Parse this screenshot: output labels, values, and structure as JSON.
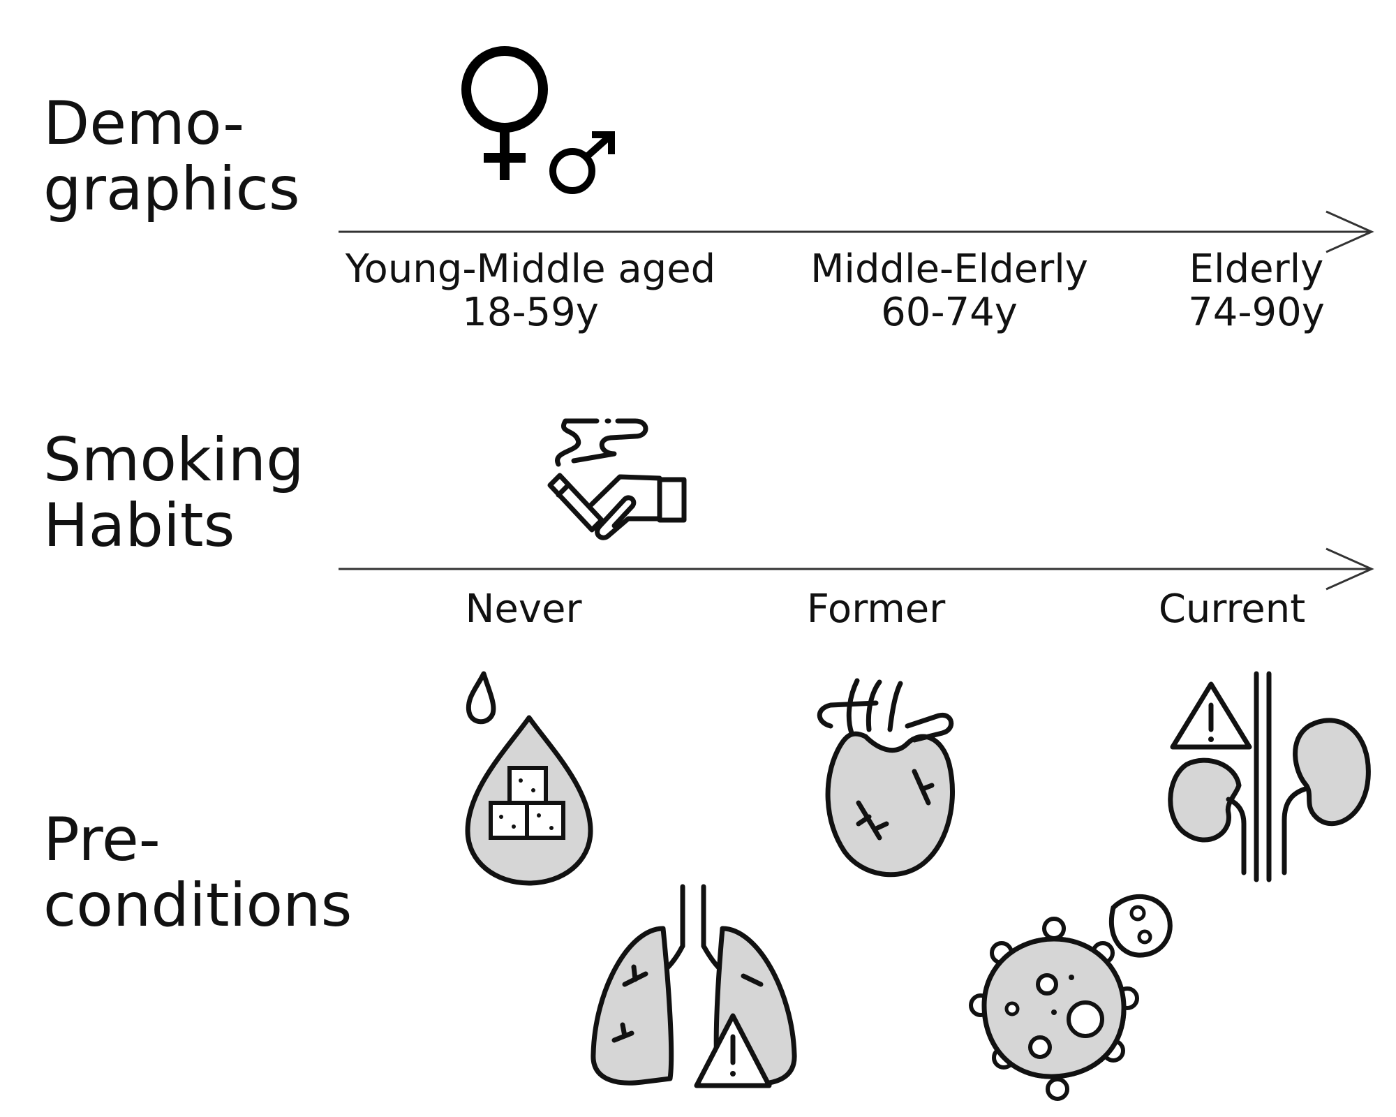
{
  "rows": {
    "demographics": {
      "title": "Demo-\ngraphics",
      "ticks": [
        "Young-Middle aged\n18-59y",
        "Middle-Elderly\n60-74y",
        "Elderly\n74-90y"
      ]
    },
    "smoking": {
      "title": "Smoking\nHabits",
      "ticks": [
        "Never",
        "Former",
        "Current"
      ]
    },
    "preconditions": {
      "title": "Pre-\nconditions"
    }
  },
  "icons": {
    "sex": [
      "female-symbol-icon",
      "male-symbol-icon"
    ],
    "smoking": "hand-cigarette-icon",
    "conditions": [
      "diabetes-blood-sugar-icon",
      "heart-icon",
      "kidney-warning-icon",
      "lungs-warning-icon",
      "cancer-cell-icon"
    ]
  },
  "colors": {
    "line": "#333333",
    "organ_fill": "#d6d6d6"
  }
}
